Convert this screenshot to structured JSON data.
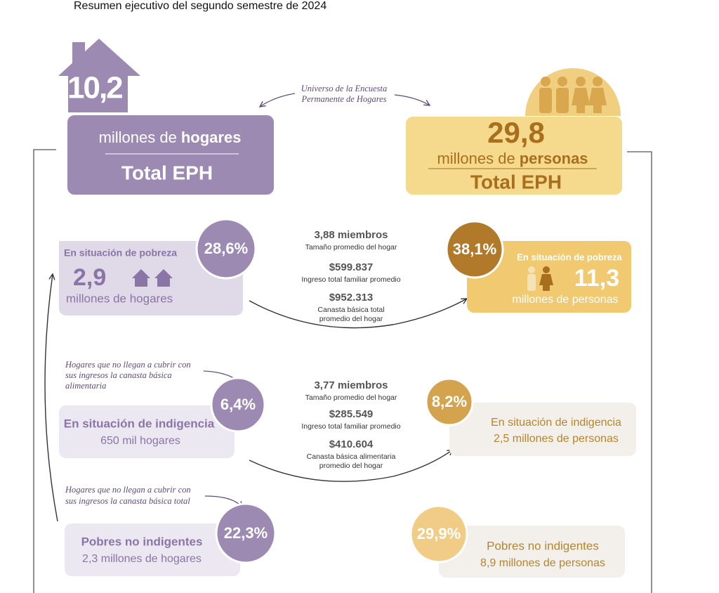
{
  "header": {
    "title": "Resumen ejecutivo del segundo semestre de 2024"
  },
  "universe": {
    "label": [
      "Universo de la Encuesta",
      "Permanente de Hogares"
    ]
  },
  "households": {
    "total": "10,2",
    "unit": "millones de",
    "unit_bold": "hogares",
    "caption": "Total EPH"
  },
  "persons": {
    "total": "29,8",
    "unit": "millones de",
    "unit_bold": "personas",
    "caption": "Total EPH"
  },
  "poverty": {
    "households": {
      "label": "En situación de pobreza",
      "percent": "28,6%",
      "count": "2,9",
      "unit": "millones de hogares"
    },
    "stats": [
      {
        "value": "3,88 miembros",
        "label": [
          "Tamaño promedio del hogar"
        ]
      },
      {
        "value": "$599.837",
        "label": [
          "Ingreso total familiar promedio"
        ]
      },
      {
        "value": "$952.313",
        "label": [
          "Canasta básica total",
          "promedio del hogar"
        ]
      }
    ],
    "persons": {
      "percent": "38,1%",
      "label": "En situación de pobreza",
      "count": "11,3",
      "unit": "millones de personas"
    }
  },
  "indigence": {
    "note": [
      "Hogares que no llegan a cubrir con",
      "sus ingresos la canasta básica",
      "alimentaria"
    ],
    "households": {
      "percent": "6,4%",
      "label": "En situación de indigencia",
      "count": "650 mil hogares"
    },
    "stats": [
      {
        "value": "3,77 miembros",
        "label": [
          "Tamaño promedio del hogar"
        ]
      },
      {
        "value": "$285.549",
        "label": [
          "Ingreso total familiar promedio"
        ]
      },
      {
        "value": "$410.604",
        "label": [
          "Canasta básica alimentaria",
          "promedio del hogar"
        ]
      }
    ],
    "persons": {
      "percent": "8,2%",
      "label": "En situación de indigencia",
      "count": "2,5 millones de personas"
    }
  },
  "non_indigent_poor": {
    "note": [
      "Hogares que no llegan a cubrir con",
      "sus ingresos la canasta básica total"
    ],
    "households": {
      "percent": "22,3%",
      "label": "Pobres no indigentes",
      "count": "2,3 millones de hogares"
    },
    "persons": {
      "percent": "29,9%",
      "label": "Pobres no indigentes",
      "count": "8,9 millones de personas"
    }
  }
}
